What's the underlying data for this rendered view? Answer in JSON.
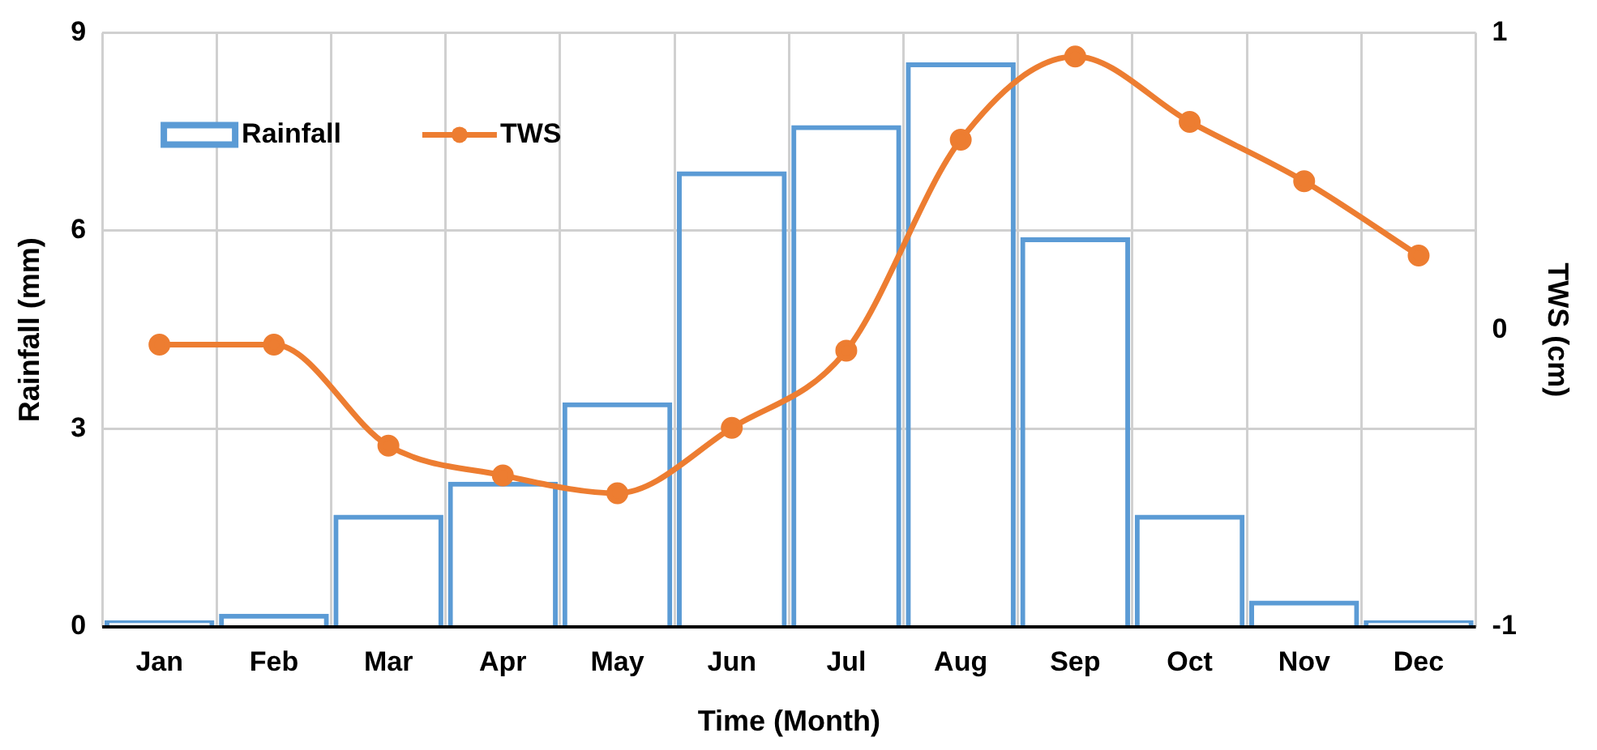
{
  "chart_data": {
    "type": "bar",
    "xlabel": "Time (Month)",
    "ylabel": "Rainfall (mm)",
    "y2label": "TWS (cm)",
    "categories": [
      "Jan",
      "Feb",
      "Mar",
      "Apr",
      "May",
      "Jun",
      "Jul",
      "Aug",
      "Sep",
      "Oct",
      "Nov",
      "Dec"
    ],
    "series": [
      {
        "name": "Rainfall",
        "color": "#5b9bd5",
        "values": [
          0.1,
          0.2,
          1.7,
          2.2,
          3.4,
          6.9,
          7.6,
          8.55,
          5.9,
          1.7,
          0.4,
          0.1
        ]
      },
      {
        "name": "TWS",
        "type": "line",
        "axis": "y2",
        "color": "#ed7d31",
        "values": [
          -0.05,
          -0.05,
          -0.39,
          -0.49,
          -0.55,
          -0.33,
          -0.07,
          0.64,
          0.92,
          0.7,
          0.5,
          0.25
        ]
      }
    ],
    "ylim": [
      0,
      9
    ],
    "yticks": [
      0,
      3,
      6,
      9
    ],
    "y2lim": [
      -1,
      1
    ],
    "y2ticks": [
      -1,
      0,
      1
    ],
    "tick_labels": [
      "x",
      "y",
      "y2"
    ],
    "grid": true,
    "legend": "top left",
    "marker": "circle",
    "line_style": "solid"
  }
}
